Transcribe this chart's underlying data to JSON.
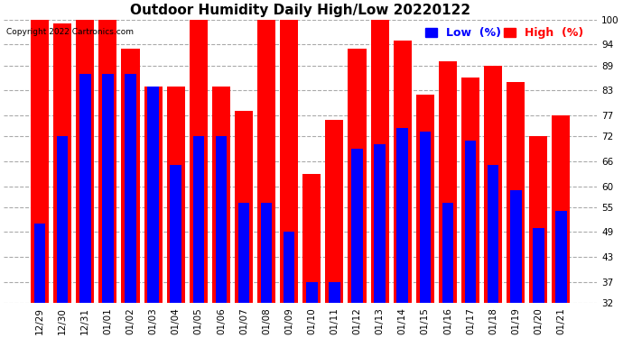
{
  "title": "Outdoor Humidity Daily High/Low 20220122",
  "copyright": "Copyright 2022 Cartronics.com",
  "legend_low": "Low  (%)",
  "legend_high": "High  (%)",
  "dates": [
    "12/29",
    "12/30",
    "12/31",
    "01/01",
    "01/02",
    "01/03",
    "01/04",
    "01/05",
    "01/06",
    "01/07",
    "01/08",
    "01/09",
    "01/10",
    "01/11",
    "01/12",
    "01/13",
    "01/14",
    "01/15",
    "01/16",
    "01/17",
    "01/18",
    "01/19",
    "01/20",
    "01/21"
  ],
  "high_values": [
    100,
    99,
    100,
    100,
    93,
    84,
    84,
    100,
    84,
    78,
    100,
    100,
    63,
    76,
    93,
    100,
    95,
    82,
    90,
    86,
    89,
    85,
    72,
    77
  ],
  "low_values": [
    51,
    72,
    87,
    87,
    87,
    84,
    65,
    72,
    72,
    56,
    56,
    49,
    37,
    37,
    69,
    70,
    74,
    73,
    56,
    71,
    65,
    59,
    50,
    54
  ],
  "ylim_min": 32,
  "ylim_max": 100,
  "yticks": [
    32,
    37,
    43,
    49,
    55,
    60,
    66,
    72,
    77,
    83,
    89,
    94,
    100
  ],
  "red_bar_width": 0.8,
  "blue_bar_width": 0.5,
  "high_color": "#ff0000",
  "low_color": "#0000ff",
  "bg_color": "#ffffff",
  "grid_color": "#aaaaaa",
  "title_fontsize": 11,
  "tick_fontsize": 7.5,
  "legend_fontsize": 9
}
